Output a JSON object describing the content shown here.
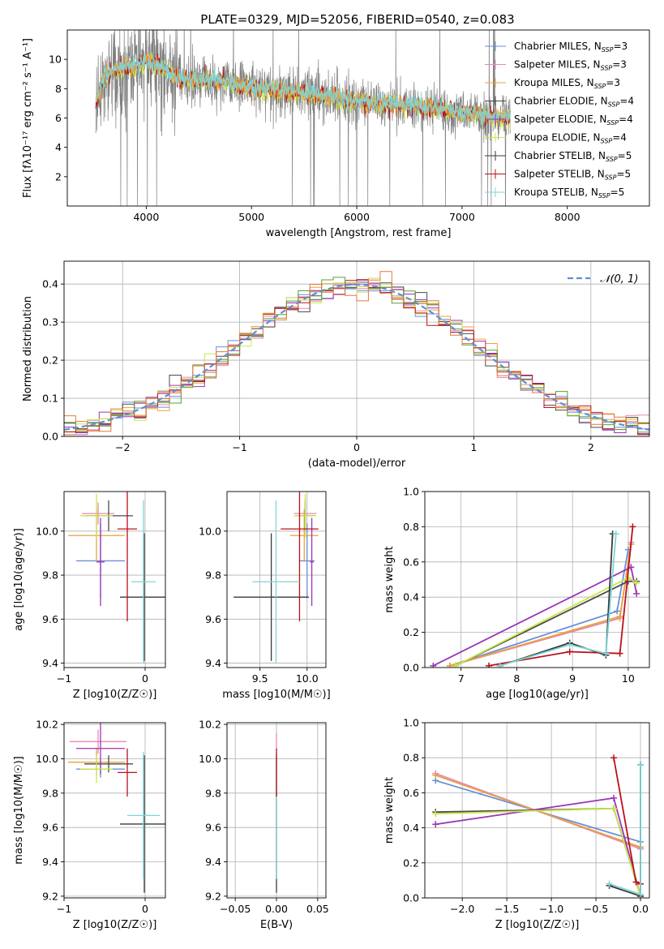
{
  "colors": {
    "Chabrier MILES": "#6a8fd8",
    "Salpeter MILES": "#e78ab0",
    "Kroupa MILES": "#e8a33d",
    "Chabrier ELODIE": "#4a4a4a",
    "Salpeter ELODIE": "#9b35b6",
    "Kroupa ELODIE": "#c9e64a",
    "Chabrier STELIB": "#3a3a3a",
    "Salpeter STELIB": "#b8121b",
    "Kroupa STELIB": "#7fd4d8",
    "green": "#5a9e3a",
    "orange": "#e8773a",
    "gray": "#808080",
    "dashed": "#5b8fd8"
  },
  "chart_data": [
    {
      "id": "spectrum",
      "type": "line",
      "title": "PLATE=0329, MJD=52056, FIBERID=0540, z=0.083",
      "xlabel": "wavelength [Angstrom, rest frame]",
      "ylabel": "Flux [fλ10⁻¹⁷ erg cm⁻² s⁻¹ A⁻¹]",
      "xlim": [
        3250,
        8780
      ],
      "ylim": [
        0,
        12
      ],
      "xticks": [
        4000,
        5000,
        6000,
        7000,
        8000
      ],
      "yticks": [
        2,
        4,
        6,
        8,
        10
      ],
      "grid": false,
      "legend_position": "top-right",
      "legend": [
        "Chabrier MILES, N_SSP=3",
        "Salpeter MILES, N_SSP=3",
        "Kroupa MILES, N_SSP=3",
        "Chabrier ELODIE, N_SSP=4",
        "Salpeter ELODIE, N_SSP=4",
        "Kroupa ELODIE, N_SSP=4",
        "Chabrier STELIB, N_SSP=5",
        "Salpeter STELIB, N_SSP=5",
        "Kroupa STELIB, N_SSP=5"
      ],
      "model_continuum": {
        "x": [
          3500,
          3600,
          3700,
          3800,
          3900,
          4000,
          4100,
          4200,
          4300,
          4500,
          4700,
          4900,
          5100,
          5300,
          5500,
          5700,
          5900,
          6100,
          6300,
          6500,
          6700,
          6900,
          7100,
          7300,
          7500
        ],
        "y": [
          6.5,
          8.8,
          9.2,
          9.6,
          9.5,
          9.9,
          9.6,
          9.1,
          8.7,
          8.6,
          8.5,
          8.2,
          8.0,
          7.8,
          7.7,
          7.5,
          7.3,
          7.1,
          6.9,
          6.8,
          6.7,
          6.5,
          6.3,
          6.1,
          6.0
        ]
      }
    },
    {
      "id": "residuals",
      "type": "histogram",
      "xlabel": "(data-model)/error",
      "ylabel": "Normed distribution",
      "xlim": [
        -2.5,
        2.5
      ],
      "ylim": [
        0,
        0.46
      ],
      "xticks": [
        -2,
        -1,
        0,
        1,
        2
      ],
      "yticks": [
        0.0,
        0.1,
        0.2,
        0.3,
        0.4
      ],
      "grid": true,
      "legend_position": "top-right",
      "legend": [
        "𝒩(0, 1)"
      ],
      "bin_width": 0.1
    },
    {
      "id": "age_vs_Z",
      "type": "errorbar",
      "xlabel": "Z [log10(Z/Z☉)]",
      "ylabel": "age  [log10(age/yr)]",
      "xlim": [
        -1.0,
        0.25
      ],
      "ylim": [
        9.38,
        10.18
      ],
      "xticks": [
        -1,
        0
      ],
      "yticks": [
        9.4,
        9.6,
        9.8,
        10.0
      ],
      "grid": true,
      "points": [
        {
          "series": "Chabrier MILES",
          "x": -0.55,
          "y": 9.865,
          "xerr": 0.3,
          "yerr": 0.17
        },
        {
          "series": "Salpeter MILES",
          "x": -0.58,
          "y": 10.08,
          "xerr": 0.2,
          "yerr": 0.05
        },
        {
          "series": "Kroupa MILES",
          "x": -0.6,
          "y": 9.98,
          "xerr": 0.35,
          "yerr": 0.12
        },
        {
          "series": "Chabrier ELODIE",
          "x": -0.45,
          "y": 10.07,
          "xerr": 0.3,
          "yerr": 0.07
        },
        {
          "series": "Salpeter ELODIE",
          "x": -0.55,
          "y": 9.86,
          "xerr": 0.05,
          "yerr": 0.2
        },
        {
          "series": "Kroupa ELODIE",
          "x": -0.6,
          "y": 10.07,
          "xerr": 0.2,
          "yerr": 0.1
        },
        {
          "series": "Chabrier STELIB",
          "x": -0.01,
          "y": 9.7,
          "xerr": 0.3,
          "yerr": 0.29
        },
        {
          "series": "Salpeter STELIB",
          "x": -0.22,
          "y": 10.01,
          "xerr": 0.12,
          "yerr": 0.42
        },
        {
          "series": "Kroupa STELIB",
          "x": -0.02,
          "y": 9.77,
          "xerr": 0.15,
          "yerr": 0.37
        }
      ]
    },
    {
      "id": "age_vs_mass",
      "type": "errorbar",
      "xlabel": "mass [log10(M/M☉)]",
      "ylabel": "",
      "xlim": [
        9.15,
        10.2
      ],
      "ylim": [
        9.38,
        10.18
      ],
      "xticks": [
        9.5,
        10.0
      ],
      "yticks": [
        9.4,
        9.6,
        9.8,
        10.0
      ],
      "grid": true,
      "points": [
        {
          "series": "Chabrier MILES",
          "x": 10.0,
          "y": 9.865,
          "xerr": 0.08,
          "yerr": 0.17
        },
        {
          "series": "Salpeter MILES",
          "x": 9.98,
          "y": 10.08,
          "xerr": 0.12,
          "yerr": 0.05
        },
        {
          "series": "Kroupa MILES",
          "x": 9.97,
          "y": 9.98,
          "xerr": 0.15,
          "yerr": 0.12
        },
        {
          "series": "Chabrier ELODIE",
          "x": 9.98,
          "y": 10.07,
          "xerr": 0.1,
          "yerr": 0.07
        },
        {
          "series": "Salpeter ELODIE",
          "x": 10.05,
          "y": 9.86,
          "xerr": 0.02,
          "yerr": 0.2
        },
        {
          "series": "Kroupa ELODIE",
          "x": 9.98,
          "y": 10.07,
          "xerr": 0.12,
          "yerr": 0.1
        },
        {
          "series": "Chabrier STELIB",
          "x": 9.62,
          "y": 9.7,
          "xerr": 0.4,
          "yerr": 0.29
        },
        {
          "series": "Salpeter STELIB",
          "x": 9.92,
          "y": 10.01,
          "xerr": 0.2,
          "yerr": 0.42
        },
        {
          "series": "Kroupa STELIB",
          "x": 9.67,
          "y": 9.77,
          "xerr": 0.25,
          "yerr": 0.37
        }
      ]
    },
    {
      "id": "weight_vs_age",
      "type": "line",
      "xlabel": "age  [log10(age/yr)]",
      "ylabel": "mass weight",
      "xlim": [
        6.35,
        10.38
      ],
      "ylim": [
        0.0,
        1.0
      ],
      "xticks": [
        7,
        8,
        9,
        10
      ],
      "yticks": [
        0.0,
        0.2,
        0.4,
        0.6,
        0.8,
        1.0
      ],
      "grid": true,
      "series": [
        {
          "name": "Chabrier MILES",
          "x": [
            6.8,
            9.8,
            10.0
          ],
          "y": [
            0.01,
            0.32,
            0.67
          ]
        },
        {
          "name": "Salpeter MILES",
          "x": [
            6.8,
            9.85,
            10.05
          ],
          "y": [
            0.01,
            0.28,
            0.71
          ]
        },
        {
          "name": "Kroupa MILES",
          "x": [
            6.8,
            9.85,
            10.05
          ],
          "y": [
            0.01,
            0.29,
            0.7
          ]
        },
        {
          "name": "Chabrier ELODIE",
          "x": [
            6.9,
            10.0,
            10.15
          ],
          "y": [
            0.01,
            0.49,
            0.49
          ]
        },
        {
          "name": "Salpeter ELODIE",
          "x": [
            6.5,
            10.05,
            10.15
          ],
          "y": [
            0.01,
            0.57,
            0.42
          ]
        },
        {
          "name": "Kroupa ELODIE",
          "x": [
            6.9,
            10.0,
            10.15
          ],
          "y": [
            0.01,
            0.51,
            0.48
          ]
        },
        {
          "name": "Chabrier STELIB",
          "x": [
            7.7,
            8.95,
            9.6,
            9.72
          ],
          "y": [
            0.01,
            0.14,
            0.07,
            0.76
          ]
        },
        {
          "name": "Salpeter STELIB",
          "x": [
            7.5,
            8.95,
            9.85,
            10.08
          ],
          "y": [
            0.01,
            0.09,
            0.08,
            0.8
          ]
        },
        {
          "name": "Kroupa STELIB",
          "x": [
            7.7,
            8.95,
            9.6,
            9.78
          ],
          "y": [
            0.01,
            0.13,
            0.08,
            0.76
          ]
        }
      ]
    },
    {
      "id": "mass_vs_Z",
      "type": "errorbar",
      "xlabel": "Z [log10(Z/Z☉)]",
      "ylabel": "mass [log10(M/M☉)]",
      "xlim": [
        -1.0,
        0.25
      ],
      "ylim": [
        9.19,
        10.21
      ],
      "xticks": [
        -1,
        0
      ],
      "yticks": [
        9.2,
        9.4,
        9.6,
        9.8,
        10.0,
        10.2
      ],
      "grid": true,
      "points": [
        {
          "series": "Chabrier MILES",
          "x": -0.55,
          "y": 9.94,
          "xerr": 0.3,
          "yerr": 0.05
        },
        {
          "series": "Salpeter MILES",
          "x": -0.58,
          "y": 10.1,
          "xerr": 0.35,
          "yerr": 0.07
        },
        {
          "series": "Kroupa MILES",
          "x": -0.6,
          "y": 9.98,
          "xerr": 0.35,
          "yerr": 0.08
        },
        {
          "series": "Chabrier ELODIE",
          "x": -0.45,
          "y": 9.97,
          "xerr": 0.3,
          "yerr": 0.05
        },
        {
          "series": "Salpeter ELODIE",
          "x": -0.55,
          "y": 10.06,
          "xerr": 0.3,
          "yerr": 0.15
        },
        {
          "series": "Kroupa ELODIE",
          "x": -0.6,
          "y": 9.94,
          "xerr": 0.2,
          "yerr": 0.08
        },
        {
          "series": "Chabrier STELIB",
          "x": -0.01,
          "y": 9.62,
          "xerr": 0.3,
          "yerr": 0.4
        },
        {
          "series": "Salpeter STELIB",
          "x": -0.22,
          "y": 9.92,
          "xerr": 0.12,
          "yerr": 0.14
        },
        {
          "series": "Kroupa STELIB",
          "x": -0.02,
          "y": 9.67,
          "xerr": 0.2,
          "yerr": 0.37
        }
      ]
    },
    {
      "id": "mass_vs_EBV",
      "type": "errorbar",
      "xlabel": "E(B-V)",
      "ylabel": "",
      "xlim": [
        -0.06,
        0.06
      ],
      "ylim": [
        9.19,
        10.21
      ],
      "xticks": [
        -0.05,
        0.0,
        0.05
      ],
      "xticklabels": [
        "−0.05",
        "0.00",
        "0.05"
      ],
      "yticks": [
        9.2,
        9.4,
        9.6,
        9.8,
        10.0,
        10.2
      ],
      "grid": true,
      "points": [
        {
          "series": "Salpeter MILES",
          "x": 0.0,
          "y": 10.1,
          "xerr": 0.0,
          "yerr": 0.05
        },
        {
          "series": "Chabrier STELIB",
          "x": 0.0,
          "y": 9.62,
          "xerr": 0.0,
          "yerr": 0.4
        },
        {
          "series": "Kroupa STELIB",
          "x": 0.0,
          "y": 9.67,
          "xerr": 0.0,
          "yerr": 0.37
        },
        {
          "series": "Salpeter STELIB",
          "x": 0.0,
          "y": 9.92,
          "xerr": 0.0,
          "yerr": 0.14
        }
      ]
    },
    {
      "id": "weight_vs_Z",
      "type": "line",
      "xlabel": "Z [log10(Z/Z☉)]",
      "ylabel": "mass weight",
      "xlim": [
        -2.42,
        0.1
      ],
      "ylim": [
        0.0,
        1.0
      ],
      "xticks": [
        -2.0,
        -1.5,
        -1.0,
        -0.5,
        0.0
      ],
      "xticklabels": [
        "−2.0",
        "−1.5",
        "−1.0",
        "−0.5",
        "0.0"
      ],
      "yticks": [
        0.0,
        0.2,
        0.4,
        0.6,
        0.8,
        1.0
      ],
      "grid": true,
      "series": [
        {
          "name": "Chabrier MILES",
          "x": [
            -2.3,
            0.0,
            0.0
          ],
          "y": [
            0.67,
            0.32,
            0.01
          ]
        },
        {
          "name": "Salpeter MILES",
          "x": [
            -2.3,
            0.0
          ],
          "y": [
            0.71,
            0.28
          ]
        },
        {
          "name": "Kroupa MILES",
          "x": [
            -2.3,
            0.0
          ],
          "y": [
            0.7,
            0.29
          ]
        },
        {
          "name": "Chabrier ELODIE",
          "x": [
            -2.3,
            -0.3,
            0.0
          ],
          "y": [
            0.49,
            0.51,
            0.01
          ]
        },
        {
          "name": "Salpeter ELODIE",
          "x": [
            -2.3,
            -0.3,
            0.0
          ],
          "y": [
            0.42,
            0.57,
            0.01
          ]
        },
        {
          "name": "Kroupa ELODIE",
          "x": [
            -2.3,
            -0.3,
            0.0
          ],
          "y": [
            0.48,
            0.51,
            0.01
          ]
        },
        {
          "name": "Chabrier STELIB",
          "x": [
            -0.35,
            0.0,
            0.0
          ],
          "y": [
            0.07,
            0.01,
            0.76
          ]
        },
        {
          "name": "Salpeter STELIB",
          "x": [
            -0.3,
            -0.05,
            0.0
          ],
          "y": [
            0.8,
            0.09,
            0.08
          ]
        },
        {
          "name": "Kroupa STELIB",
          "x": [
            -0.35,
            0.0,
            0.0
          ],
          "y": [
            0.08,
            0.02,
            0.76
          ]
        }
      ]
    }
  ]
}
